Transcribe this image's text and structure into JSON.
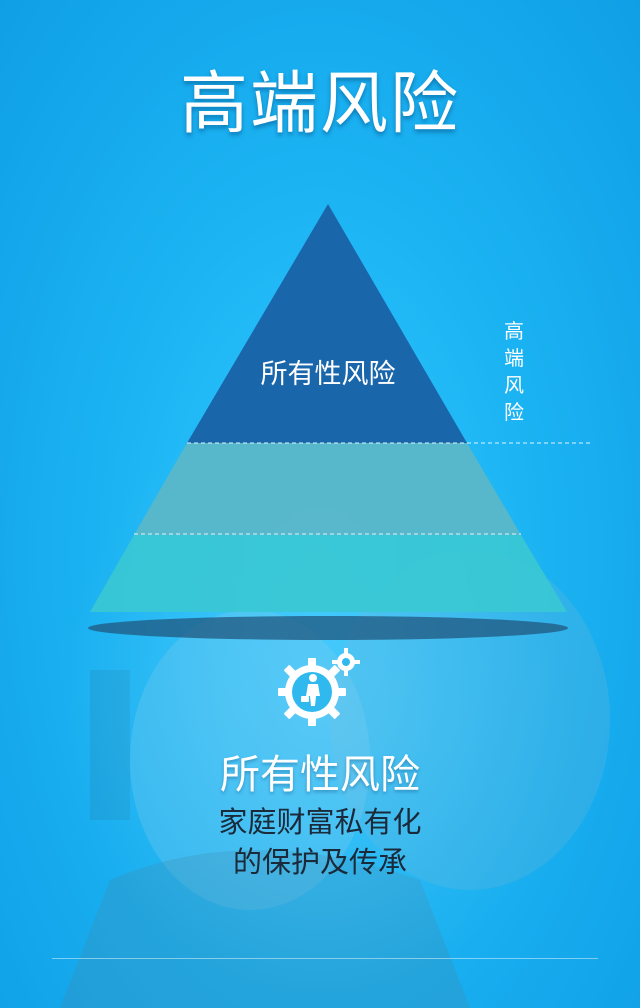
{
  "title": "高端风险",
  "pyramid": {
    "top_label": "所有性风险",
    "side_label_chars": [
      "高",
      "端",
      "风",
      "险"
    ]
  },
  "section": {
    "heading": "所有性风险",
    "description_lines": [
      "家庭财富私有化",
      "的保护及传承"
    ]
  },
  "colors": {
    "background": "#1cb4f3",
    "pyramid_top": "#1a66ab",
    "pyramid_middle": "#5bb7c8",
    "pyramid_bottom": "#3ac8d4"
  },
  "icon": "gear-worker-icon"
}
